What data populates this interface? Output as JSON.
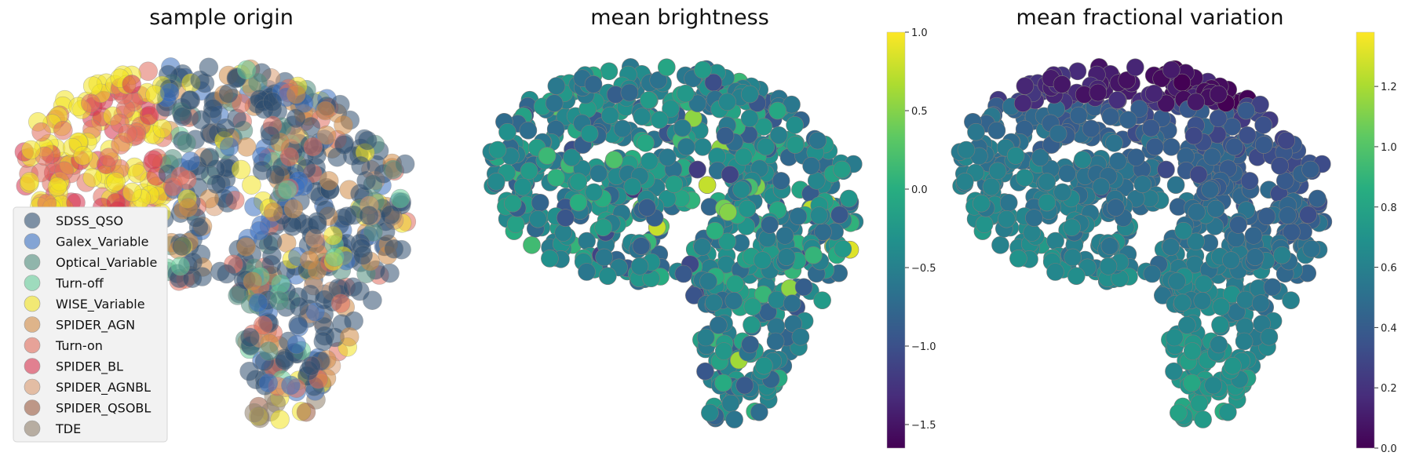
{
  "chart_data": [
    {
      "type": "scatter",
      "title": "sample origin",
      "legend": {
        "placement": "lower-left",
        "entries": [
          {
            "name": "SDSS_QSO",
            "color": "#2f4f6f"
          },
          {
            "name": "Galex_Variable",
            "color": "#3a6fbf"
          },
          {
            "name": "Optical_Variable",
            "color": "#4f8c7c"
          },
          {
            "name": "Turn-off",
            "color": "#66cc99"
          },
          {
            "name": "WISE_Variable",
            "color": "#f2e320"
          },
          {
            "name": "SPIDER_AGN",
            "color": "#d08a45"
          },
          {
            "name": "Turn-on",
            "color": "#e06c5c"
          },
          {
            "name": "SPIDER_BL",
            "color": "#d6334f"
          },
          {
            "name": "SPIDER_AGNBL",
            "color": "#d89a70"
          },
          {
            "name": "SPIDER_QSOBL",
            "color": "#9a5a40"
          },
          {
            "name": "TDE",
            "color": "#8f7f6a"
          }
        ]
      },
      "axes": "off",
      "grid": false
    },
    {
      "type": "scatter",
      "title": "mean brightness",
      "colormap": "viridis",
      "colorbar": {
        "range": [
          -1.65,
          1.0
        ],
        "ticks": [
          "1.0",
          "0.5",
          "0.0",
          "−0.5",
          "−1.0",
          "−1.5"
        ],
        "tick_values": [
          1.0,
          0.5,
          0.0,
          -0.5,
          -1.0,
          -1.5
        ]
      },
      "axes": "off",
      "grid": false
    },
    {
      "type": "scatter",
      "title": "mean fractional variation",
      "colormap": "viridis",
      "colorbar": {
        "range": [
          0.0,
          1.38
        ],
        "ticks": [
          "1.2",
          "1.0",
          "0.8",
          "0.6",
          "0.4",
          "0.2",
          "0.0"
        ],
        "tick_values": [
          1.2,
          1.0,
          0.8,
          0.6,
          0.4,
          0.2,
          0.0
        ]
      },
      "axes": "off",
      "grid": false
    }
  ]
}
